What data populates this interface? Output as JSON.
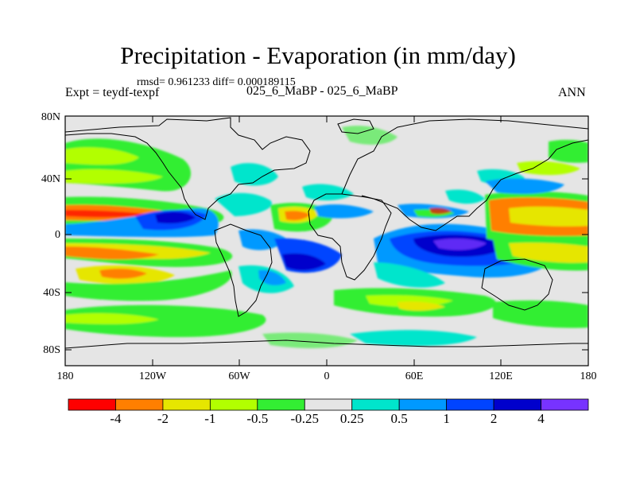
{
  "title": "Precipitation - Evaporation (in mm/day)",
  "stats": "rmsd= 0.961233 diff= 0.000189115",
  "expt": "Expt = teydf-texpf",
  "run": "025_6_MaBP - 025_6_MaBP",
  "season": "ANN",
  "lat_ticks": [
    "80N",
    "40N",
    "0",
    "40S",
    "80S"
  ],
  "lon_ticks": [
    "180",
    "120W",
    "60W",
    "0",
    "60E",
    "120E",
    "180"
  ],
  "colorbar": {
    "colors": [
      "#fe0000",
      "#ff7f00",
      "#e6e600",
      "#b2ff00",
      "#33ee33",
      "#e5e5e5",
      "#00e5cc",
      "#0099ff",
      "#0044ff",
      "#0000cc",
      "#7733ff"
    ],
    "labels": [
      "-4",
      "-2",
      "-1",
      "-0.5",
      "-0.25",
      "0.25",
      "0.5",
      "1",
      "2",
      "4"
    ]
  },
  "map_background": "#e5e5e5"
}
